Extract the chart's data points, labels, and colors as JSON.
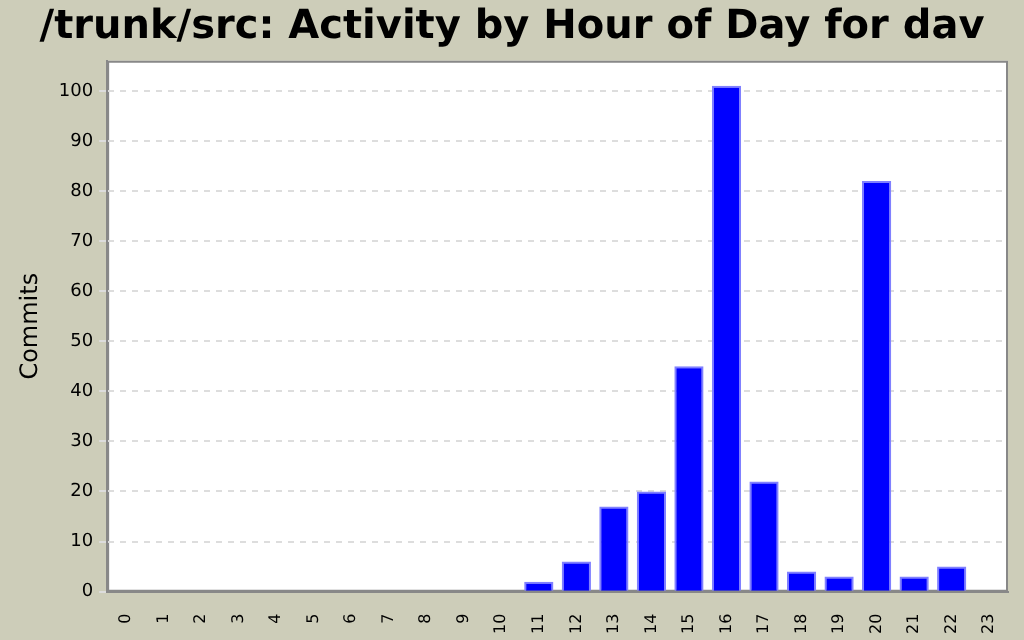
{
  "chart_data": {
    "type": "bar",
    "title": "/trunk/src: Activity by Hour of Day for dav",
    "ylabel": "Commits",
    "categories": [
      "0",
      "1",
      "2",
      "3",
      "4",
      "5",
      "6",
      "7",
      "8",
      "9",
      "10",
      "11",
      "12",
      "13",
      "14",
      "15",
      "16",
      "17",
      "18",
      "19",
      "20",
      "21",
      "22",
      "23"
    ],
    "values": [
      0,
      0,
      0,
      0,
      0,
      0,
      0,
      0,
      0,
      0,
      0,
      2,
      6,
      17,
      20,
      45,
      101,
      22,
      4,
      3,
      82,
      3,
      5,
      0
    ],
    "color": "#0000ff",
    "ylim": [
      0,
      106
    ],
    "yticks": [
      0,
      10,
      20,
      30,
      40,
      50,
      60,
      70,
      80,
      90,
      100
    ],
    "grid": "y",
    "legend": false
  }
}
